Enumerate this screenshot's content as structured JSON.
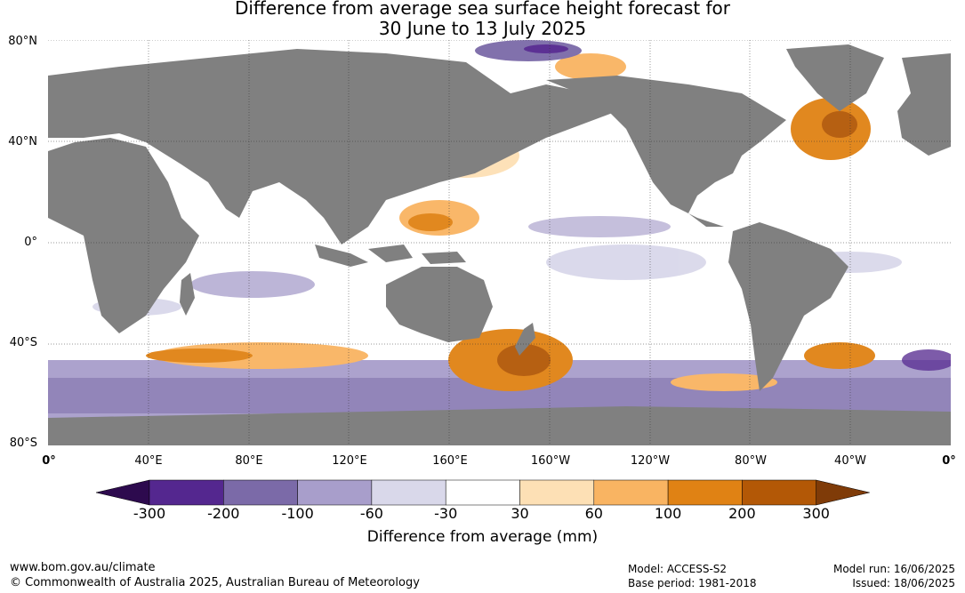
{
  "title": {
    "line1": "Difference from average sea surface height forecast for",
    "line2": "30 June to 13 July 2025"
  },
  "map": {
    "lat_labels": [
      "80°N",
      "40°N",
      "0°",
      "40°S",
      "80°S"
    ],
    "lon_labels": [
      "0°",
      "40°E",
      "80°E",
      "120°E",
      "160°E",
      "160°W",
      "120°W",
      "80°W",
      "40°W",
      "0°"
    ],
    "land_color": "#808080",
    "palette_colors": [
      "#2d0a4e",
      "#54278f",
      "#7b6aa8",
      "#a89ecb",
      "#d9d8ea",
      "#ffffff",
      "#fde0b5",
      "#f9b462",
      "#e08214",
      "#b35806",
      "#7f3b08"
    ]
  },
  "colorbar": {
    "ticks": [
      "-300",
      "-200",
      "-100",
      "-60",
      "-30",
      "30",
      "60",
      "100",
      "200",
      "300"
    ],
    "label": "Difference from average (mm)"
  },
  "footer": {
    "url": "www.bom.gov.au/climate",
    "copyright": "© Commonwealth of Australia 2025, Australian Bureau of Meteorology",
    "model": "Model: ACCESS-S2",
    "base_period": "Base period: 1981-2018",
    "model_run": "Model run: 16/06/2025",
    "issued": "Issued: 18/06/2025"
  }
}
